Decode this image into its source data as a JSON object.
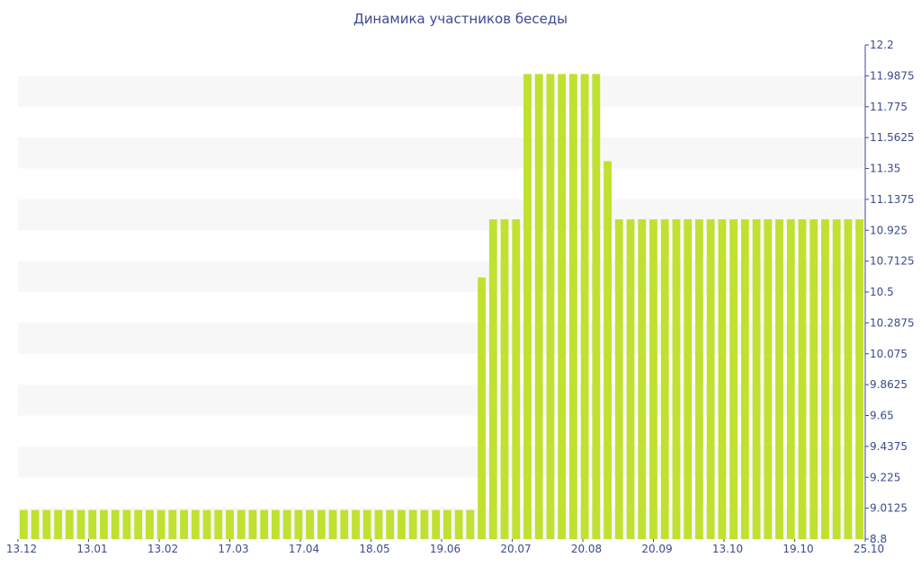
{
  "colors": {
    "bar": "#bfe12f",
    "band": "#f7f7f7",
    "axis": "#3c4a8e"
  },
  "chart_data": {
    "type": "bar",
    "title": "Динамика участников беседы",
    "xlabel": "",
    "ylabel": "",
    "ylim": [
      8.8,
      12.2
    ],
    "y_axis_side": "right",
    "grid": "alternating horizontal bands",
    "legend": "none",
    "x_tick_labels": [
      "13.12",
      "13.01",
      "13.02",
      "17.03",
      "17.04",
      "18.05",
      "19.06",
      "20.07",
      "20.08",
      "20.09",
      "13.10",
      "19.10",
      "25.10"
    ],
    "y_tick_labels": [
      "8.8",
      "9.0125",
      "9.225",
      "9.4375",
      "9.65",
      "9.8625",
      "10.075",
      "10.2875",
      "10.5",
      "10.7125",
      "10.925",
      "11.1375",
      "11.35",
      "11.5625",
      "11.775",
      "11.9875",
      "12.2"
    ],
    "values": [
      9,
      9,
      9,
      9,
      9,
      9,
      9,
      9,
      9,
      9,
      9,
      9,
      9,
      9,
      9,
      9,
      9,
      9,
      9,
      9,
      9,
      9,
      9,
      9,
      9,
      9,
      9,
      9,
      9,
      9,
      9,
      9,
      9,
      9,
      9,
      9,
      9,
      9,
      9,
      9,
      10.6,
      11,
      11,
      11,
      12,
      12,
      12,
      12,
      12,
      12,
      12,
      11.4,
      11,
      11,
      11,
      11,
      11,
      11,
      11,
      11,
      11,
      11,
      11,
      11,
      11,
      11,
      11,
      11,
      11,
      11,
      11,
      11,
      11,
      11
    ]
  }
}
